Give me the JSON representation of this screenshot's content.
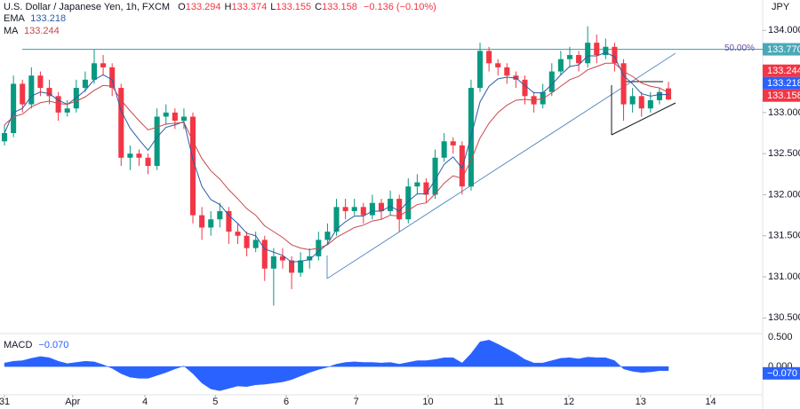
{
  "chart_data": {
    "type": "candlestick",
    "title": "U.S. Dollar / Japanese Yen, 1h, FXCM",
    "currency": "JPY",
    "up_color": "#089981",
    "down_color": "#f23645",
    "header_keys": [
      "O",
      "H",
      "L",
      "C"
    ],
    "change": "−0.136",
    "change_pct": "(−0.10%)",
    "open": [
      132.65,
      132.75,
      133.35,
      133.1,
      133.45,
      133.3,
      133.2,
      133.0,
      133.05,
      133.3,
      133.4,
      133.6,
      133.55,
      133.3,
      132.45,
      132.5,
      132.45,
      132.35,
      132.95,
      133.0,
      132.9,
      132.95,
      131.75,
      131.6,
      131.7,
      131.8,
      131.55,
      131.5,
      131.35,
      131.45,
      131.1,
      131.25,
      131.2,
      131.05,
      131.2,
      131.25,
      131.45,
      131.55,
      131.85,
      131.8,
      131.85,
      131.75,
      131.9,
      131.8,
      131.95,
      131.7,
      132.1,
      132.15,
      132.0,
      132.45,
      132.65,
      132.6,
      132.1,
      133.3,
      133.75,
      133.6,
      133.55,
      133.45,
      133.4,
      133.2,
      133.1,
      133.25,
      133.5,
      133.65,
      133.7,
      133.6,
      133.85,
      133.7,
      133.8,
      133.6,
      133.1,
      133.2,
      133.05,
      133.15,
      133.294
    ],
    "high": [
      132.85,
      133.45,
      133.4,
      133.55,
      133.5,
      133.4,
      133.25,
      133.15,
      133.4,
      133.5,
      133.77,
      133.7,
      133.6,
      133.35,
      132.6,
      132.55,
      132.5,
      133.05,
      133.1,
      133.05,
      133.05,
      133.0,
      131.85,
      131.8,
      131.9,
      131.85,
      131.65,
      131.55,
      131.55,
      131.5,
      131.35,
      131.35,
      131.25,
      131.3,
      131.35,
      131.55,
      131.65,
      131.95,
      131.95,
      131.95,
      131.9,
      132.0,
      131.95,
      132.05,
      132.0,
      132.2,
      132.25,
      132.2,
      132.55,
      132.75,
      132.7,
      132.65,
      133.4,
      133.85,
      133.8,
      133.65,
      133.6,
      133.5,
      133.45,
      133.25,
      133.35,
      133.6,
      133.75,
      133.8,
      133.75,
      134.05,
      133.95,
      133.9,
      133.85,
      133.65,
      133.3,
      133.25,
      133.25,
      133.3,
      133.374
    ],
    "low": [
      132.6,
      132.7,
      133.0,
      133.05,
      133.2,
      133.1,
      132.9,
      132.95,
      133.0,
      133.25,
      133.35,
      133.45,
      133.2,
      132.35,
      132.3,
      132.35,
      132.25,
      132.3,
      132.85,
      132.8,
      132.8,
      131.65,
      131.45,
      131.5,
      131.6,
      131.4,
      131.4,
      131.25,
      131.3,
      130.95,
      130.65,
      131.1,
      130.85,
      131.0,
      131.1,
      131.2,
      131.4,
      131.5,
      131.7,
      131.75,
      131.65,
      131.7,
      131.7,
      131.75,
      131.55,
      131.65,
      132.0,
      131.9,
      131.95,
      132.4,
      132.5,
      132.0,
      132.05,
      133.25,
      133.5,
      133.45,
      133.35,
      133.3,
      133.1,
      133.0,
      133.05,
      133.2,
      133.45,
      133.55,
      133.5,
      133.55,
      133.6,
      133.65,
      133.5,
      132.9,
      133.0,
      132.95,
      133.0,
      133.1,
      133.155
    ],
    "close": [
      132.75,
      133.35,
      133.1,
      133.45,
      133.3,
      133.2,
      133.0,
      133.05,
      133.3,
      133.4,
      133.6,
      133.55,
      133.3,
      132.45,
      132.5,
      132.45,
      132.35,
      132.95,
      133.0,
      132.9,
      132.95,
      131.75,
      131.6,
      131.7,
      131.8,
      131.55,
      131.5,
      131.35,
      131.45,
      131.1,
      131.25,
      131.2,
      131.05,
      131.2,
      131.25,
      131.45,
      131.55,
      131.85,
      131.8,
      131.85,
      131.75,
      131.9,
      131.8,
      131.95,
      131.7,
      132.1,
      132.15,
      132.0,
      132.45,
      132.65,
      132.6,
      132.1,
      133.3,
      133.75,
      133.6,
      133.55,
      133.45,
      133.4,
      133.2,
      133.1,
      133.25,
      133.5,
      133.65,
      133.7,
      133.6,
      133.85,
      133.7,
      133.8,
      133.6,
      133.1,
      133.2,
      133.05,
      133.15,
      133.25,
      133.158
    ],
    "series": [
      {
        "name": "EMA",
        "color": "#2a5ea8",
        "values": [
          132.75,
          133.0,
          133.05,
          133.2,
          133.25,
          133.23,
          133.15,
          133.1,
          133.18,
          133.27,
          133.4,
          133.46,
          133.4,
          133.02,
          132.81,
          132.67,
          132.54,
          132.7,
          132.82,
          132.85,
          132.89,
          132.43,
          132.1,
          131.94,
          131.88,
          131.75,
          131.65,
          131.53,
          131.5,
          131.34,
          131.3,
          131.26,
          131.18,
          131.19,
          131.21,
          131.31,
          131.4,
          131.58,
          131.67,
          131.74,
          131.74,
          131.8,
          131.8,
          131.86,
          131.8,
          131.92,
          132.01,
          132.01,
          132.18,
          132.37,
          132.46,
          132.32,
          132.71,
          133.13,
          133.32,
          133.41,
          133.43,
          133.42,
          133.33,
          133.24,
          133.24,
          133.34,
          133.46,
          133.56,
          133.58,
          133.69,
          133.69,
          133.73,
          133.68,
          133.45,
          133.35,
          133.23,
          133.2,
          133.22,
          133.218
        ]
      },
      {
        "name": "MA",
        "color": "#c8484f",
        "values": [
          132.85,
          132.95,
          132.98,
          133.07,
          133.12,
          133.14,
          133.11,
          133.1,
          133.14,
          133.19,
          133.27,
          133.33,
          133.32,
          133.15,
          133.02,
          132.9,
          132.79,
          132.82,
          132.86,
          132.87,
          132.88,
          132.65,
          132.44,
          132.29,
          132.19,
          132.06,
          131.95,
          131.83,
          131.75,
          131.62,
          131.55,
          131.48,
          131.39,
          131.35,
          131.33,
          131.35,
          131.39,
          131.48,
          131.54,
          131.6,
          131.63,
          131.68,
          131.7,
          131.75,
          131.74,
          131.81,
          131.88,
          131.9,
          132.01,
          132.14,
          132.23,
          132.2,
          132.42,
          132.69,
          132.87,
          133.0,
          133.09,
          133.15,
          133.16,
          133.15,
          133.17,
          133.24,
          133.32,
          133.4,
          133.44,
          133.52,
          133.56,
          133.6,
          133.6,
          133.5,
          133.44,
          133.36,
          133.32,
          133.3,
          133.244
        ]
      }
    ],
    "level": {
      "value": 133.77,
      "label": "50.00%",
      "price_label": "133.770",
      "color": "#4aa8b8"
    },
    "xlim": [
      -0.5,
      84.5
    ],
    "xticks": [
      {
        "value": 0,
        "label": "31"
      },
      {
        "value": 7.6,
        "label": "Apr"
      },
      {
        "value": 15.65,
        "label": "4"
      },
      {
        "value": 23.5,
        "label": "5"
      },
      {
        "value": 31.4,
        "label": "6"
      },
      {
        "value": 39.2,
        "label": "7"
      },
      {
        "value": 47.2,
        "label": "10"
      },
      {
        "value": 55.1,
        "label": "11"
      },
      {
        "value": 62.9,
        "label": "12"
      },
      {
        "value": 70.9,
        "label": "13"
      },
      {
        "value": 78.7,
        "label": "14"
      }
    ],
    "ylim": [
      130.32,
      134.37
    ],
    "yticks": [
      {
        "value": 130.5,
        "label": "130.500"
      },
      {
        "value": 131,
        "label": "131.000"
      },
      {
        "value": 131.5,
        "label": "131.500"
      },
      {
        "value": 132,
        "label": "132.000"
      },
      {
        "value": 132.5,
        "label": "132.500"
      },
      {
        "value": 133,
        "label": "133.000"
      },
      {
        "value": 133.5,
        "label": "133.500"
      },
      {
        "value": 134,
        "label": "134.000"
      }
    ],
    "macd": {
      "name": "MACD",
      "color": "#2962ff",
      "current_label": "−0.070",
      "ylim": [
        -0.48,
        0.53
      ],
      "yticks": [
        {
          "value": 0,
          "label": "0.000"
        },
        {
          "value": 0.5,
          "label": "0.500"
        }
      ],
      "values": [
        0.06,
        0.09,
        0.1,
        0.14,
        0.17,
        0.15,
        0.09,
        0.05,
        0.07,
        0.09,
        0.08,
        0.03,
        -0.03,
        -0.12,
        -0.18,
        -0.2,
        -0.2,
        -0.15,
        -0.1,
        -0.04,
        0.01,
        -0.12,
        -0.28,
        -0.38,
        -0.41,
        -0.37,
        -0.33,
        -0.34,
        -0.31,
        -0.3,
        -0.28,
        -0.26,
        -0.22,
        -0.16,
        -0.1,
        -0.05,
        -0.01,
        0.04,
        0.07,
        0.08,
        0.07,
        0.07,
        0.06,
        0.07,
        0.04,
        0.07,
        0.1,
        0.1,
        0.12,
        0.15,
        0.15,
        0.06,
        0.22,
        0.42,
        0.45,
        0.38,
        0.3,
        0.22,
        0.12,
        0.06,
        0.06,
        0.1,
        0.14,
        0.15,
        0.13,
        0.16,
        0.15,
        0.15,
        0.1,
        -0.04,
        -0.08,
        -0.1,
        -0.09,
        -0.07,
        -0.07
      ]
    }
  }
}
